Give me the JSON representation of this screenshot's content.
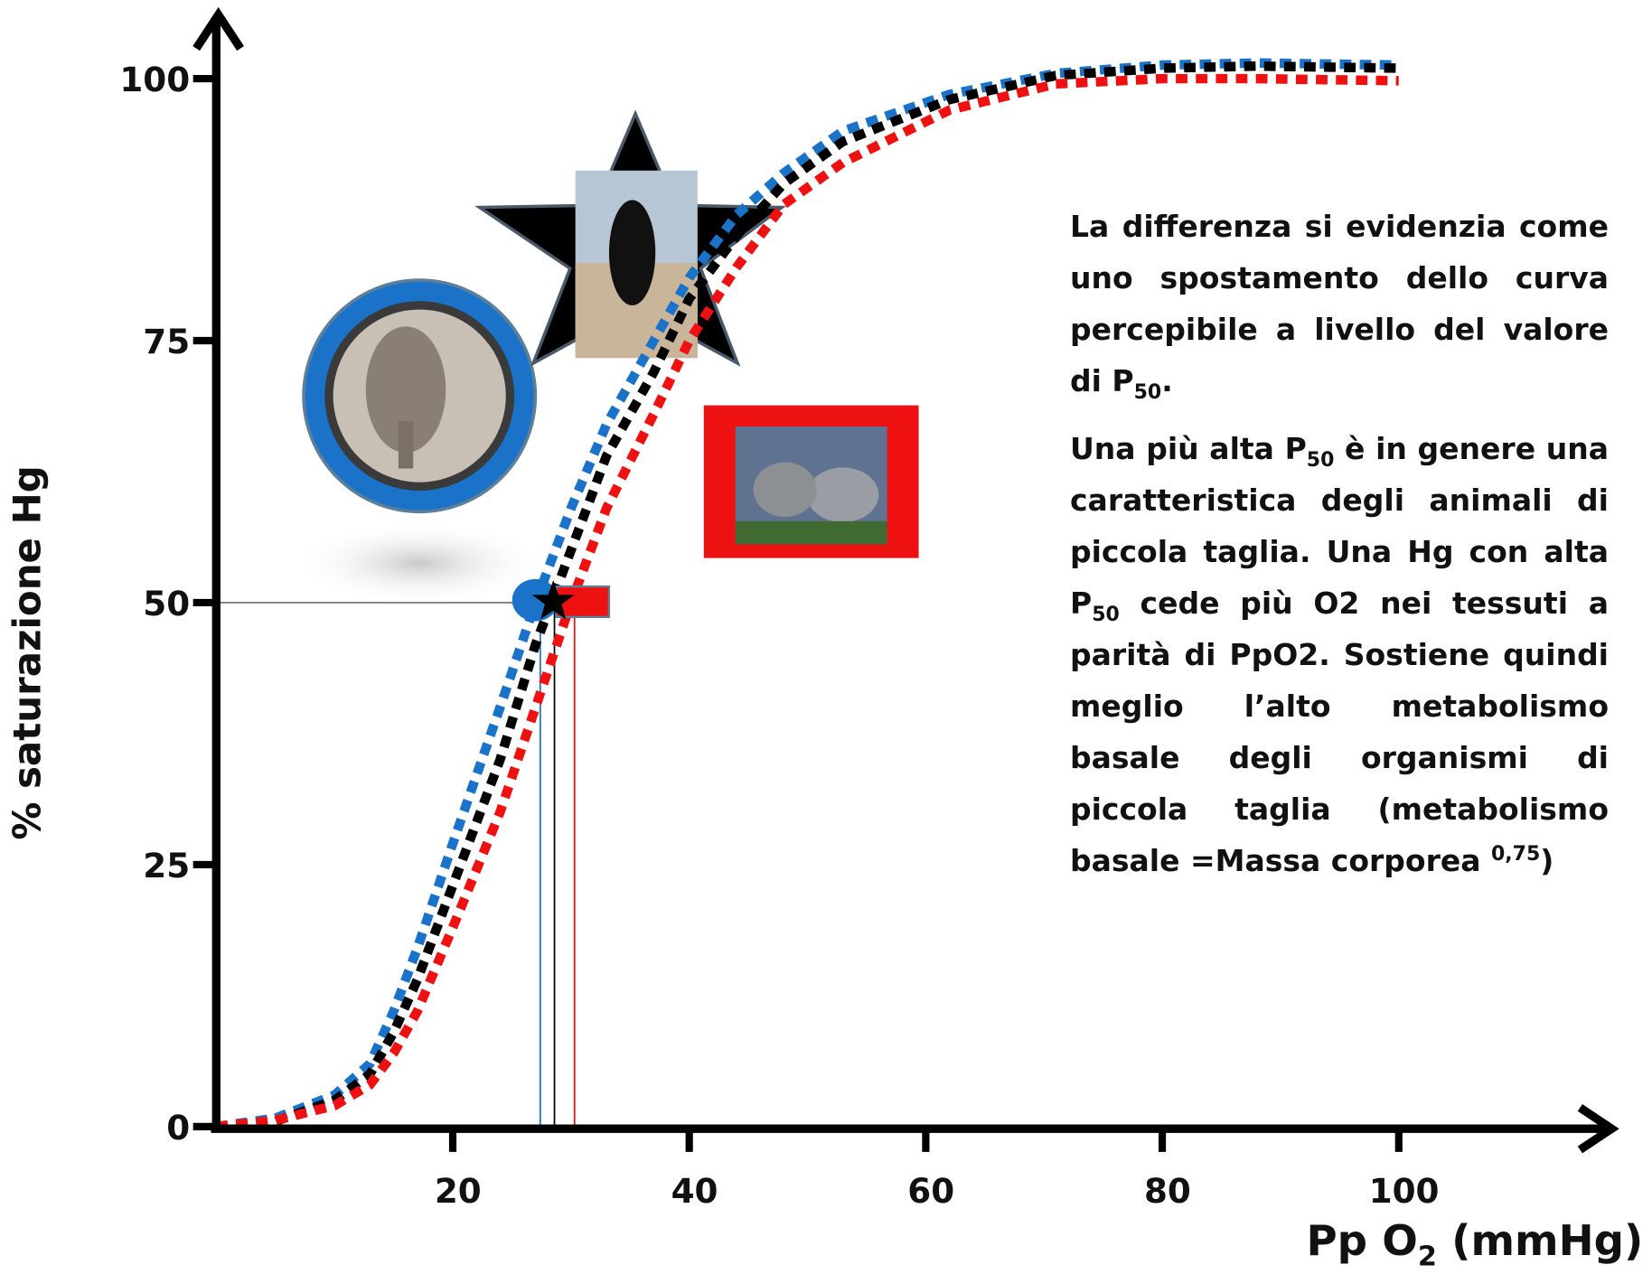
{
  "chart_data": {
    "type": "line",
    "ylabel": "% saturazione Hg",
    "xlabel": [
      {
        "text": "Pp O"
      },
      {
        "sub": "2"
      },
      {
        "text": " (mmHg)"
      }
    ],
    "x": [
      0,
      5,
      10,
      13,
      15,
      17,
      20,
      24,
      27,
      30,
      33,
      37,
      40,
      44,
      48,
      53,
      62,
      71,
      80,
      88,
      100
    ],
    "series": [
      {
        "color": "#1a73c8",
        "values": [
          0,
          0.8,
          3,
          6,
          11,
          17,
          27,
          40,
          50,
          59,
          67,
          75,
          81,
          87,
          91,
          95,
          98.5,
          100.5,
          101.3,
          101.5,
          101.3
        ]
      },
      {
        "color": "#000000",
        "values": [
          0,
          0.5,
          2.5,
          5,
          9,
          14,
          23,
          35,
          46,
          55,
          64,
          72,
          79,
          85,
          90,
          94,
          98,
          100.3,
          101,
          101.2,
          101
        ]
      },
      {
        "color": "#ee1111",
        "values": [
          0,
          0.6,
          2,
          4,
          7,
          11,
          19,
          30,
          40,
          50,
          59,
          68,
          75,
          82,
          88,
          92,
          97,
          99.5,
          100,
          100,
          99.8
        ]
      }
    ],
    "reference_lines": {
      "y": 50,
      "x": [
        27.4,
        28.6,
        30.3
      ]
    },
    "xlim": [
      0,
      118
    ],
    "ylim": [
      0,
      106
    ],
    "xticks": [
      20,
      40,
      60,
      80,
      100
    ],
    "yticks": [
      0,
      25,
      50,
      75,
      100
    ],
    "grid": false,
    "annotation": [
      [
        {
          "text": "La differenza si evidenzia come uno spostamento dello curva percepibile a livello del valore di P"
        },
        {
          "sub": "50"
        },
        {
          "text": "."
        }
      ],
      [
        {
          "text": "Una più alta P"
        },
        {
          "sub": "50"
        },
        {
          "text": " è in genere una caratteristica degli animali di piccola taglia. Una Hg con alta P"
        },
        {
          "sub": "50"
        },
        {
          "text": " cede più O2 nei tessuti a parità di PpO2. Sostiene quindi meglio l’alto metabolismo basale degli organismi di piccola taglia (metabolismo basale =Massa corporea "
        },
        {
          "sup": "0,75"
        },
        {
          "text": ")"
        }
      ]
    ]
  }
}
